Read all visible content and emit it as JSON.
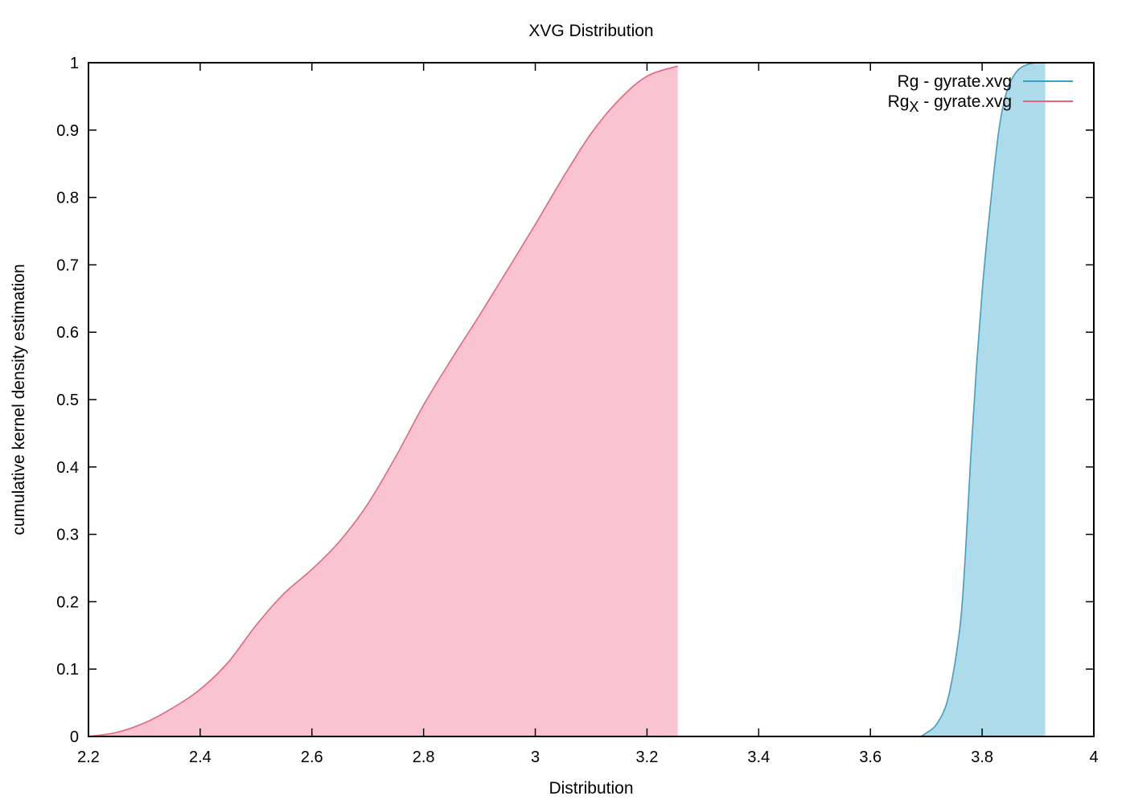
{
  "chart_data": {
    "type": "area",
    "title": "XVG Distribution",
    "xlabel": "Distribution",
    "ylabel": "cumulative kernel density estimation",
    "xlim": [
      2.2,
      4.0
    ],
    "ylim": [
      0,
      1
    ],
    "x_ticks": [
      "2.2",
      "2.4",
      "2.6",
      "2.8",
      "3",
      "3.2",
      "3.4",
      "3.6",
      "3.8",
      "4"
    ],
    "y_ticks": [
      "0",
      "0.1",
      "0.2",
      "0.3",
      "0.4",
      "0.5",
      "0.6",
      "0.7",
      "0.8",
      "0.9",
      "1"
    ],
    "grid": false,
    "legend_position": "top-right",
    "series": [
      {
        "name": "Rg - gyrate.xvg",
        "legend_main": "Rg",
        "legend_sub": "",
        "legend_rest": " - gyrate.xvg",
        "line_color": "#3aa0c8",
        "fill_color": "#addbea",
        "x": [
          3.69,
          3.7,
          3.72,
          3.74,
          3.76,
          3.77,
          3.78,
          3.79,
          3.8,
          3.81,
          3.82,
          3.83,
          3.84,
          3.85,
          3.86,
          3.87,
          3.88,
          3.89,
          3.9,
          3.913
        ],
        "y": [
          0.0,
          0.005,
          0.02,
          0.06,
          0.16,
          0.27,
          0.42,
          0.55,
          0.66,
          0.75,
          0.83,
          0.9,
          0.945,
          0.97,
          0.985,
          0.993,
          0.997,
          0.999,
          1.0,
          1.0
        ]
      },
      {
        "name": "RgX - gyrate.xvg",
        "legend_main": "Rg",
        "legend_sub": "X",
        "legend_rest": " - gyrate.xvg",
        "line_color": "#e8647e",
        "fill_color": "#f9c4d0",
        "x": [
          2.2,
          2.25,
          2.3,
          2.35,
          2.4,
          2.45,
          2.5,
          2.55,
          2.6,
          2.65,
          2.7,
          2.75,
          2.8,
          2.85,
          2.9,
          2.95,
          3.0,
          3.05,
          3.1,
          3.15,
          3.2,
          3.255
        ],
        "y": [
          0.0,
          0.006,
          0.02,
          0.042,
          0.07,
          0.11,
          0.165,
          0.212,
          0.248,
          0.29,
          0.345,
          0.415,
          0.492,
          0.56,
          0.625,
          0.692,
          0.76,
          0.83,
          0.895,
          0.945,
          0.98,
          0.995
        ]
      }
    ]
  }
}
